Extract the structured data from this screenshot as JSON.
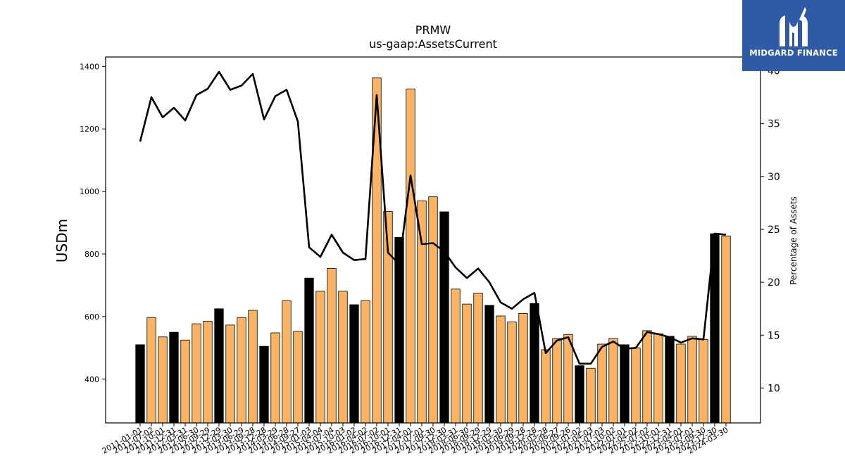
{
  "chart_data": {
    "type": "bar",
    "title": "PRMW",
    "subtitle": "us-gaap:AssetsCurrent",
    "ylabel": "USDm",
    "y2label": "Percentage of Assets",
    "ylim": [
      260,
      1430
    ],
    "y2lim": [
      6.7,
      41.3
    ],
    "yticks": [
      400,
      600,
      800,
      1000,
      1200,
      1400
    ],
    "y2ticks": [
      10,
      15,
      20,
      25,
      30,
      35,
      40
    ],
    "colors": {
      "bar": "#fdb462",
      "bar_highlight": "#000000",
      "line": "#000000"
    },
    "categories": [
      "2011-01-01",
      "2011-07-02",
      "2011-10-01",
      "2011-12-31",
      "2012-03-31",
      "2012-06-30",
      "2012-09-29",
      "2012-12-29",
      "2013-03-30",
      "2013-06-29",
      "2013-09-28",
      "2013-12-28",
      "2014-03-29",
      "2014-06-28",
      "2014-09-27",
      "2015-01-03",
      "2015-04-04",
      "2015-07-04",
      "2015-10-03",
      "2016-01-02",
      "2016-04-02",
      "2016-07-02",
      "2016-10-01",
      "2016-12-31",
      "2017-04-01",
      "2017-07-01",
      "2017-09-30",
      "2017-12-30",
      "2018-03-31",
      "2018-06-30",
      "2018-09-29",
      "2018-12-29",
      "2019-03-30",
      "2019-06-29",
      "2019-09-28",
      "2019-12-28",
      "2020-03-28",
      "2020-06-27",
      "2020-09-26",
      "2021-01-02",
      "2021-04-03",
      "2021-07-03",
      "2021-10-02",
      "2022-01-01",
      "2022-04-02",
      "2022-07-02",
      "2022-10-01",
      "2022-12-31",
      "2023-04-01",
      "2023-07-01",
      "2023-09-30",
      "2023-12-30",
      "2024-03-30"
    ],
    "values": [
      510,
      597,
      535,
      550,
      525,
      577,
      585,
      625,
      573,
      597,
      620,
      505,
      548,
      651,
      553,
      723,
      681,
      754,
      681,
      638,
      651,
      1363,
      936,
      853,
      1328,
      970,
      983,
      935,
      688,
      640,
      675,
      636,
      602,
      583,
      610,
      642,
      494,
      530,
      543,
      443,
      435,
      512,
      530,
      510,
      500,
      555,
      545,
      537,
      512,
      537,
      527,
      865,
      858
    ],
    "highlight": [
      true,
      false,
      false,
      true,
      false,
      false,
      false,
      true,
      false,
      false,
      false,
      true,
      false,
      false,
      false,
      true,
      false,
      false,
      false,
      true,
      false,
      false,
      false,
      true,
      false,
      false,
      false,
      true,
      false,
      false,
      false,
      true,
      false,
      false,
      false,
      true,
      false,
      false,
      false,
      true,
      false,
      false,
      false,
      true,
      false,
      false,
      false,
      true,
      false,
      false,
      false,
      true,
      false
    ],
    "line_values": [
      33.3,
      37.5,
      35.6,
      36.5,
      35.3,
      37.7,
      38.3,
      39.9,
      38.2,
      38.6,
      39.7,
      35.4,
      37.6,
      38.2,
      35.2,
      23.3,
      22.4,
      24.5,
      22.8,
      22.1,
      22.2,
      37.7,
      22.8,
      21.7,
      30.1,
      23.6,
      23.7,
      22.9,
      21.4,
      20.4,
      21.3,
      20.0,
      18.1,
      17.5,
      18.4,
      19.0,
      13.3,
      14.5,
      14.8,
      12.3,
      12.3,
      13.9,
      14.4,
      13.7,
      13.8,
      15.3,
      15.1,
      14.8,
      14.3,
      14.7,
      14.6,
      24.6,
      24.5
    ]
  },
  "branding": {
    "logo_text": "MIDGARD FINANCE"
  }
}
